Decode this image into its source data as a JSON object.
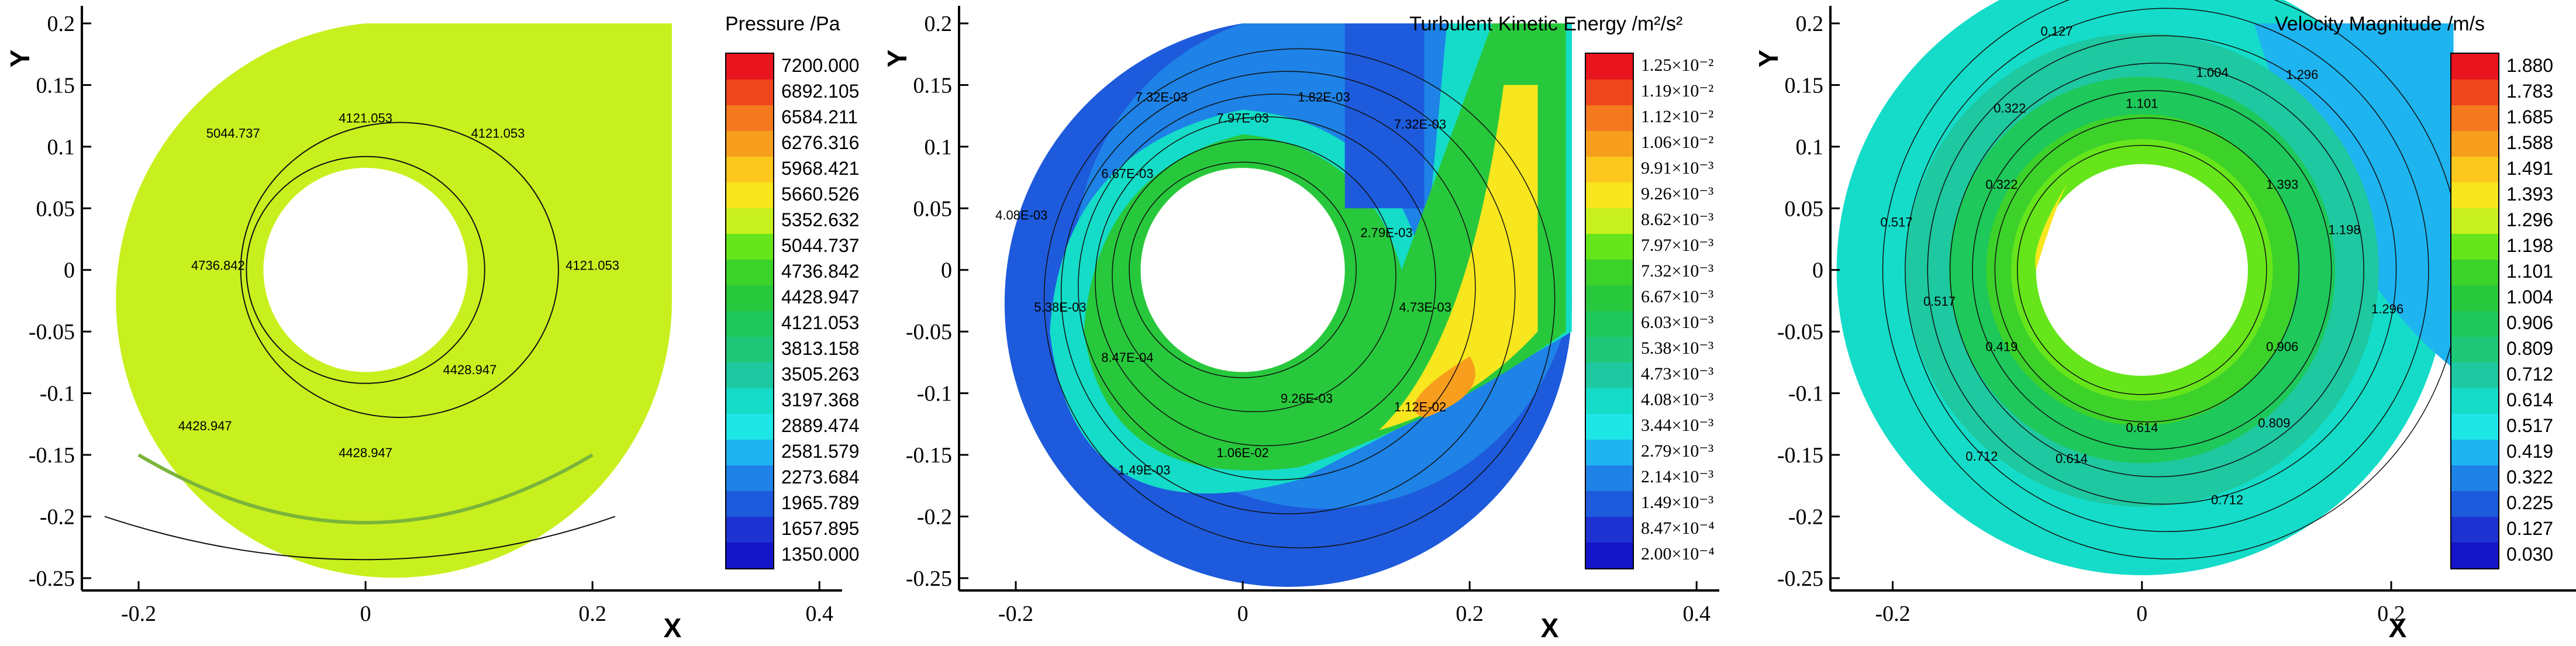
{
  "chart_data": [
    {
      "type": "contour",
      "title": "Pressure /Pa",
      "xlabel": "X",
      "ylabel": "Y",
      "xlim": [
        -0.25,
        0.42
      ],
      "ylim": [
        -0.26,
        0.2
      ],
      "xticks": [
        "-0.2",
        "0",
        "0.2",
        "0.4"
      ],
      "yticks": [
        "0.2",
        "0.15",
        "0.1",
        "0.05",
        "0",
        "-0.05",
        "-0.1",
        "-0.15",
        "-0.2",
        "-0.25"
      ],
      "legend_levels": [
        "7200.000",
        "6892.105",
        "6584.211",
        "6276.316",
        "5968.421",
        "5660.526",
        "5352.632",
        "5044.737",
        "4736.842",
        "4428.947",
        "4121.053",
        "3813.158",
        "3505.263",
        "3197.368",
        "2889.474",
        "2581.579",
        "2273.684",
        "1965.789",
        "1657.895",
        "1350.000"
      ],
      "legend_colors": [
        "#e8141e",
        "#f0461e",
        "#f4781e",
        "#f89e1e",
        "#fcc81e",
        "#f8e61e",
        "#c8f01e",
        "#66e61a",
        "#3cd22a",
        "#28c83c",
        "#1ec85a",
        "#1ec878",
        "#1ec8a0",
        "#14dcc8",
        "#1ee6e6",
        "#1eb4f0",
        "#1e82e6",
        "#1e5adc",
        "#1e32d2",
        "#1414c8"
      ],
      "contour_labels": [
        "4121.053",
        "4121.053",
        "4121.053",
        "4428.947",
        "4428.947",
        "4428.947",
        "4736.842",
        "5044.737"
      ]
    },
    {
      "type": "contour",
      "title": "Turbulent Kinetic Energy /m²/s²",
      "xlabel": "X",
      "ylabel": "Y",
      "xlim": [
        -0.25,
        0.42
      ],
      "ylim": [
        -0.26,
        0.2
      ],
      "xticks": [
        "-0.2",
        "0",
        "0.2",
        "0.4"
      ],
      "yticks": [
        "0.2",
        "0.15",
        "0.1",
        "0.05",
        "0",
        "-0.05",
        "-0.1",
        "-0.15",
        "-0.2",
        "-0.25"
      ],
      "legend_levels": [
        "1.25×10⁻²",
        "1.19×10⁻²",
        "1.12×10⁻²",
        "1.06×10⁻²",
        "9.91×10⁻³",
        "9.26×10⁻³",
        "8.62×10⁻³",
        "7.97×10⁻³",
        "7.32×10⁻³",
        "6.67×10⁻³",
        "6.03×10⁻³",
        "5.38×10⁻³",
        "4.73×10⁻³",
        "4.08×10⁻³",
        "3.44×10⁻³",
        "2.79×10⁻³",
        "2.14×10⁻³",
        "1.49×10⁻³",
        "8.47×10⁻⁴",
        "2.00×10⁻⁴"
      ],
      "legend_colors": [
        "#e8141e",
        "#f0461e",
        "#f4781e",
        "#f89e1e",
        "#fcc81e",
        "#f8e61e",
        "#c8f01e",
        "#66e61a",
        "#3cd22a",
        "#28c83c",
        "#1ec85a",
        "#1ec878",
        "#1ec8a0",
        "#14dcc8",
        "#1ee6e6",
        "#1eb4f0",
        "#1e82e6",
        "#1e5adc",
        "#1e32d2",
        "#1414c8"
      ],
      "contour_labels": [
        "7.97E-03",
        "1.82E-03",
        "7.32E-03",
        "2.79E-03",
        "4.73E-03",
        "1.12E-02",
        "9.26E-03",
        "1.06E-02",
        "1.49E-03",
        "8.47E-04",
        "5.38E-03",
        "4.08E-03",
        "6.67E-03",
        "7.32E-03"
      ]
    },
    {
      "type": "contour",
      "title": "Velocity Magnitude /m/s",
      "xlabel": "X",
      "ylabel": "Y",
      "xlim": [
        -0.25,
        0.36
      ],
      "ylim": [
        -0.26,
        0.2
      ],
      "xticks": [
        "-0.2",
        "0",
        "0.2"
      ],
      "yticks": [
        "0.2",
        "0.15",
        "0.1",
        "0.05",
        "0",
        "-0.05",
        "-0.1",
        "-0.15",
        "-0.2",
        "-0.25"
      ],
      "legend_levels": [
        "1.880",
        "1.783",
        "1.685",
        "1.588",
        "1.491",
        "1.393",
        "1.296",
        "1.198",
        "1.101",
        "1.004",
        "0.906",
        "0.809",
        "0.712",
        "0.614",
        "0.517",
        "0.419",
        "0.322",
        "0.225",
        "0.127",
        "0.030"
      ],
      "legend_colors": [
        "#e8141e",
        "#f0461e",
        "#f4781e",
        "#f89e1e",
        "#fcc81e",
        "#f8e61e",
        "#c8f01e",
        "#66e61a",
        "#3cd22a",
        "#28c83c",
        "#1ec85a",
        "#1ec878",
        "#1ec8a0",
        "#14dcc8",
        "#1ee6e6",
        "#1eb4f0",
        "#1e82e6",
        "#1e5adc",
        "#1e32d2",
        "#1414c8"
      ],
      "contour_labels": [
        "1.101",
        "1.004",
        "1.296",
        "1.393",
        "1.198",
        "1.296",
        "0.906",
        "0.809",
        "0.712",
        "0.614",
        "0.614",
        "0.712",
        "0.419",
        "0.517",
        "0.517",
        "0.322",
        "0.322",
        "0.127"
      ]
    }
  ]
}
